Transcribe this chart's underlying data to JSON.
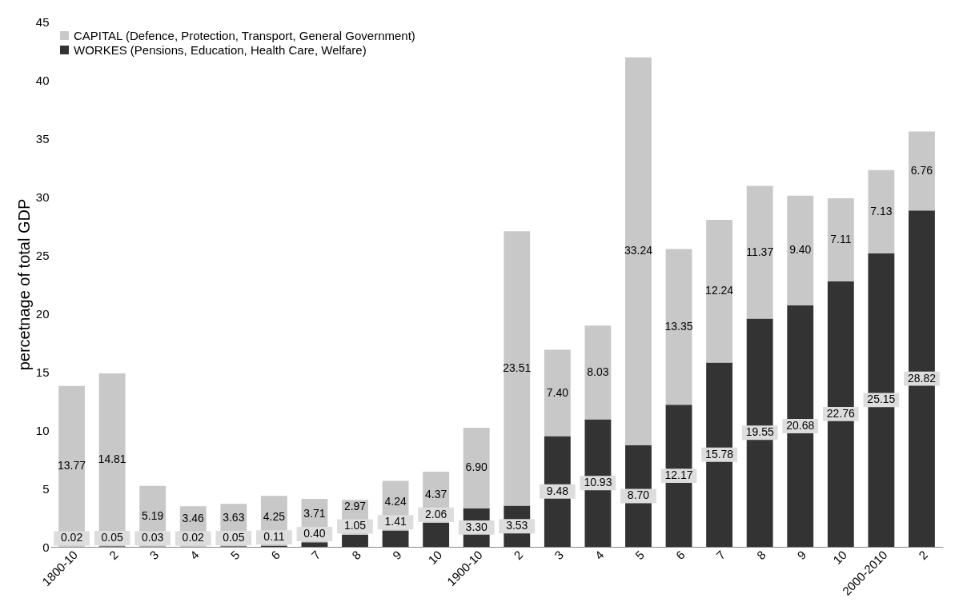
{
  "chart_data": {
    "type": "bar",
    "stacked": true,
    "ylabel": "percetnage of total GDP",
    "categories": [
      "1800-10",
      "2",
      "3",
      "4",
      "5",
      "6",
      "7",
      "8",
      "9",
      "10",
      "1900-10",
      "2",
      "3",
      "4",
      "5",
      "6",
      "7",
      "8",
      "9",
      "10",
      "2000-2010",
      "2"
    ],
    "series": [
      {
        "name": "WORKES (Pensions, Education, Health Care, Welfare)",
        "color": "#333333",
        "values": [
          0.02,
          0.05,
          0.03,
          0.02,
          0.05,
          0.11,
          0.4,
          1.05,
          1.41,
          2.06,
          3.3,
          3.53,
          9.48,
          10.93,
          8.7,
          12.17,
          15.78,
          19.55,
          20.68,
          22.76,
          25.15,
          28.82
        ],
        "value_labels": [
          "0.02",
          "0.05",
          "0.03",
          "0.02",
          "0.05",
          "0.11",
          "0.40",
          "1.05",
          "1.41",
          "2.06",
          "3.30",
          "3.53",
          "9.48",
          "10.93",
          "8.70",
          "12.17",
          "15.78",
          "19.55",
          "20.68",
          "22.76",
          "25.15",
          "28.82"
        ]
      },
      {
        "name": "CAPITAL (Defence, Protection, Transport, General Government)",
        "color": "#c8c8c8",
        "values": [
          13.77,
          14.81,
          5.19,
          3.46,
          3.63,
          4.25,
          3.71,
          2.97,
          4.24,
          4.37,
          6.9,
          23.51,
          7.4,
          8.03,
          33.24,
          13.35,
          12.24,
          11.37,
          9.4,
          7.11,
          7.13,
          6.76
        ],
        "value_labels": [
          "13.77",
          "14.81",
          "5.19",
          "3.46",
          "3.63",
          "4.25",
          "3.71",
          "2.97",
          "4.24",
          "4.37",
          "6.90",
          "23.51",
          "7.40",
          "8.03",
          "33.24",
          "13.35",
          "12.24",
          "11.37",
          "9.40",
          "7.11",
          "7.13",
          "6.76"
        ]
      }
    ],
    "ylim": [
      0,
      45
    ],
    "yticks": [
      0,
      5,
      10,
      15,
      20,
      25,
      30,
      35,
      40,
      45
    ],
    "grid": false,
    "legend": "top left"
  }
}
